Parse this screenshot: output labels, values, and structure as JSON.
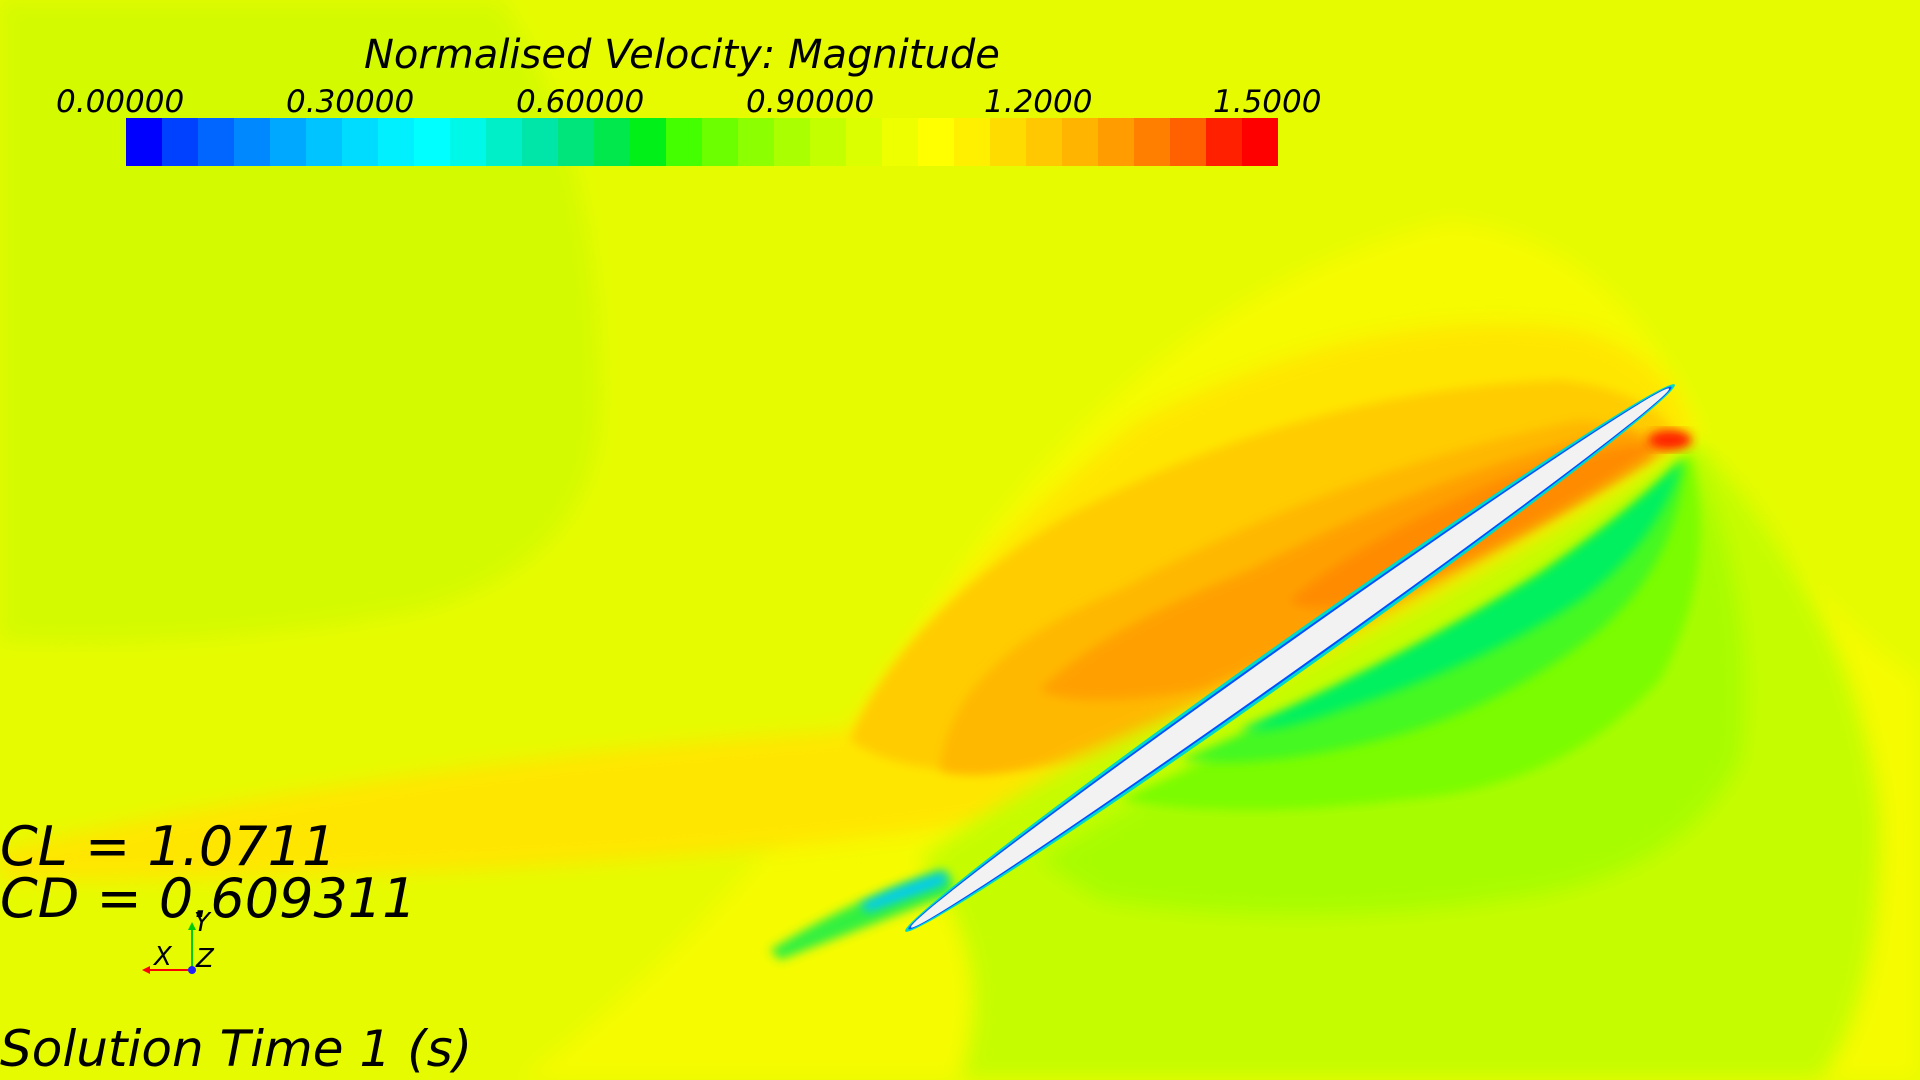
{
  "legend": {
    "title": "Normalised Velocity: Magnitude",
    "ticks": [
      "0.00000",
      "0.30000",
      "0.60000",
      "0.90000",
      "1.2000",
      "1.5000"
    ],
    "min": 0.0,
    "max": 1.5,
    "swatches": [
      "#0000ff",
      "#0040ff",
      "#0066ff",
      "#0088ff",
      "#00a8ff",
      "#00c4ff",
      "#00dcff",
      "#00f0ff",
      "#00ffff",
      "#00f8e8",
      "#00eec8",
      "#00e6a8",
      "#00e47c",
      "#00e84c",
      "#00f018",
      "#44ff00",
      "#6cff00",
      "#8cff00",
      "#aaff00",
      "#c4ff00",
      "#dcff00",
      "#eeff00",
      "#ffff00",
      "#fff000",
      "#ffdc00",
      "#ffc800",
      "#ffb400",
      "#ff9c00",
      "#ff8000",
      "#ff6000",
      "#ff2000",
      "#ff0000"
    ]
  },
  "coefficients": {
    "cl": "CL = 1.0711",
    "cd": "CD = 0.609311"
  },
  "solution_time": "Solution Time 1 (s)",
  "triad": {
    "y": "Y",
    "x": "X",
    "z": "Z",
    "x_color": "#ff0000",
    "y_color": "#00cc00",
    "z_color": "#2020ff"
  },
  "colors": {
    "freestream": "#e6fb00",
    "body": "#f2f2f2"
  }
}
